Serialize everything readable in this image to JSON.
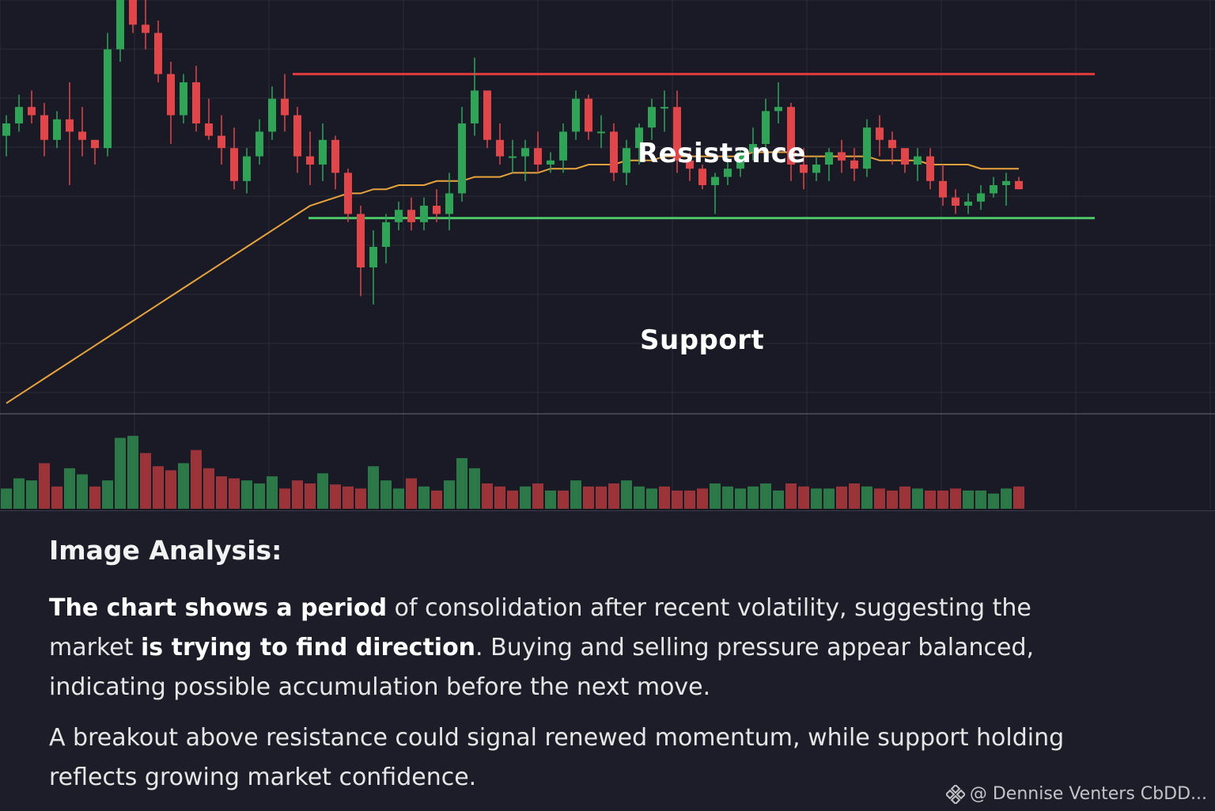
{
  "chart_data": {
    "type": "candlestick",
    "title": "",
    "xlabel": "",
    "ylabel": "",
    "grid": true,
    "ylim": [
      0,
      100
    ],
    "volume_ylim": [
      0,
      100
    ],
    "annotations": {
      "resistance": {
        "label": "Resistance",
        "value": 82,
        "color": "#e0393e"
      },
      "support": {
        "label": "Support",
        "value": 47,
        "color": "#4cc468"
      }
    },
    "colors": {
      "up": "#2fa457",
      "down": "#e0464a",
      "ma": "#e8a33d",
      "grid": "#2a2c38"
    },
    "candles": [
      [
        67,
        72,
        62,
        70
      ],
      [
        70,
        77,
        68,
        74
      ],
      [
        74,
        78,
        70,
        72
      ],
      [
        72,
        75,
        62,
        66
      ],
      [
        66,
        73,
        64,
        71
      ],
      [
        71,
        80,
        55,
        68
      ],
      [
        68,
        74,
        62,
        66
      ],
      [
        66,
        66,
        60,
        64
      ],
      [
        64,
        92,
        62,
        88
      ],
      [
        88,
        104,
        85,
        100
      ],
      [
        100,
        106,
        92,
        94
      ],
      [
        94,
        100,
        88,
        92
      ],
      [
        92,
        95,
        80,
        82
      ],
      [
        82,
        85,
        65,
        72
      ],
      [
        72,
        82,
        70,
        80
      ],
      [
        80,
        84,
        68,
        70
      ],
      [
        70,
        76,
        66,
        67
      ],
      [
        67,
        72,
        60,
        64
      ],
      [
        64,
        69,
        54,
        56
      ],
      [
        56,
        64,
        53,
        62
      ],
      [
        62,
        71,
        60,
        68
      ],
      [
        68,
        79,
        66,
        76
      ],
      [
        76,
        82,
        68,
        72
      ],
      [
        72,
        74,
        58,
        62
      ],
      [
        62,
        68,
        55,
        60
      ],
      [
        60,
        70,
        56,
        66
      ],
      [
        66,
        67,
        54,
        58
      ],
      [
        58,
        59,
        46,
        48
      ],
      [
        48,
        50,
        28,
        35
      ],
      [
        35,
        44,
        26,
        40
      ],
      [
        40,
        48,
        36,
        46
      ],
      [
        46,
        51,
        44,
        49
      ],
      [
        49,
        52,
        44,
        46
      ],
      [
        46,
        52,
        44,
        50
      ],
      [
        50,
        54,
        46,
        48
      ],
      [
        48,
        58,
        44,
        53
      ],
      [
        53,
        74,
        51,
        70
      ],
      [
        70,
        86,
        67,
        78
      ],
      [
        78,
        77,
        64,
        66
      ],
      [
        66,
        70,
        60,
        62
      ],
      [
        62,
        66,
        58,
        62
      ],
      [
        62,
        66,
        56,
        64
      ],
      [
        64,
        68,
        58,
        60
      ],
      [
        60,
        63,
        58,
        61
      ],
      [
        61,
        70,
        58,
        68
      ],
      [
        68,
        78,
        66,
        76
      ],
      [
        76,
        77,
        66,
        68
      ],
      [
        68,
        72,
        64,
        68
      ],
      [
        68,
        70,
        56,
        58
      ],
      [
        58,
        66,
        55,
        64
      ],
      [
        64,
        70,
        60,
        69
      ],
      [
        69,
        76,
        66,
        74
      ],
      [
        74,
        78,
        68,
        74
      ],
      [
        74,
        78,
        58,
        61
      ],
      [
        61,
        63,
        56,
        59
      ],
      [
        59,
        60,
        54,
        55
      ],
      [
        55,
        58,
        48,
        57
      ],
      [
        57,
        62,
        55,
        59
      ],
      [
        59,
        64,
        57,
        63
      ],
      [
        63,
        69,
        61,
        65
      ],
      [
        65,
        76,
        63,
        73
      ],
      [
        73,
        80,
        70,
        74
      ],
      [
        74,
        75,
        56,
        60
      ],
      [
        60,
        64,
        54,
        58
      ],
      [
        58,
        62,
        56,
        60
      ],
      [
        60,
        64,
        56,
        63
      ],
      [
        63,
        66,
        58,
        61
      ],
      [
        61,
        64,
        56,
        59
      ],
      [
        59,
        71,
        57,
        69
      ],
      [
        69,
        72,
        62,
        66
      ],
      [
        66,
        68,
        60,
        64
      ],
      [
        64,
        63,
        58,
        60
      ],
      [
        60,
        64,
        56,
        62
      ],
      [
        62,
        64,
        54,
        56
      ],
      [
        56,
        60,
        50,
        52
      ],
      [
        52,
        54,
        48,
        50
      ],
      [
        50,
        53,
        48,
        51
      ],
      [
        51,
        55,
        49,
        53
      ],
      [
        53,
        57,
        52,
        55
      ],
      [
        55,
        58,
        50,
        56
      ],
      [
        56,
        57,
        54,
        54
      ]
    ],
    "ma": [
      2,
      4,
      6,
      8,
      10,
      12,
      14,
      16,
      18,
      20,
      22,
      24,
      26,
      28,
      30,
      32,
      34,
      36,
      38,
      40,
      42,
      44,
      46,
      48,
      50,
      51,
      52,
      53,
      53,
      54,
      54,
      55,
      55,
      55,
      56,
      56,
      56,
      57,
      57,
      57,
      58,
      58,
      58,
      59,
      59,
      59,
      60,
      60,
      60,
      61,
      61,
      61,
      62,
      62,
      62,
      62,
      62,
      62,
      62,
      63,
      63,
      63,
      63,
      62,
      62,
      62,
      62,
      62,
      62,
      61,
      61,
      61,
      61,
      60,
      60,
      60,
      60,
      59,
      59,
      59,
      59
    ],
    "volume": [
      20,
      30,
      28,
      45,
      22,
      40,
      34,
      22,
      28,
      70,
      72,
      55,
      42,
      38,
      45,
      58,
      40,
      32,
      30,
      28,
      25,
      32,
      20,
      28,
      25,
      35,
      24,
      22,
      20,
      42,
      28,
      20,
      30,
      22,
      18,
      28,
      50,
      40,
      25,
      22,
      18,
      22,
      25,
      18,
      18,
      28,
      22,
      22,
      25,
      28,
      22,
      20,
      22,
      18,
      18,
      20,
      25,
      22,
      20,
      22,
      25,
      18,
      25,
      22,
      20,
      20,
      22,
      25,
      22,
      20,
      18,
      22,
      20,
      18,
      18,
      20,
      18,
      18,
      15,
      20,
      22
    ],
    "volume_up": [
      1,
      1,
      1,
      0,
      0,
      1,
      1,
      0,
      1,
      1,
      1,
      0,
      0,
      0,
      1,
      0,
      0,
      0,
      0,
      1,
      1,
      1,
      0,
      0,
      0,
      1,
      0,
      0,
      0,
      1,
      1,
      1,
      0,
      1,
      0,
      1,
      1,
      1,
      0,
      0,
      0,
      1,
      0,
      1,
      0,
      1,
      0,
      0,
      0,
      1,
      1,
      1,
      0,
      0,
      0,
      0,
      1,
      1,
      1,
      1,
      1,
      1,
      0,
      0,
      1,
      1,
      0,
      0,
      1,
      0,
      0,
      0,
      1,
      0,
      0,
      0,
      1,
      1,
      1,
      1,
      0
    ]
  },
  "analysis": {
    "title": "Image Analysis:",
    "para1": {
      "b1": "The chart shows a ",
      "b2": "period",
      "t1": " of consolidation after recent volatility, suggesting the market ",
      "b3": "is trying to ",
      "b4": "find direction",
      "t2": ". Buying and selling pressure appear balanced, indicating possible accumulation before the next move."
    },
    "para2": "A breakout above resistance could signal renewed momentum, while support holding reflects growing market confidence."
  },
  "watermark": {
    "text": "@ Dennise Venters CbDD...",
    "icon": "binance-icon"
  }
}
